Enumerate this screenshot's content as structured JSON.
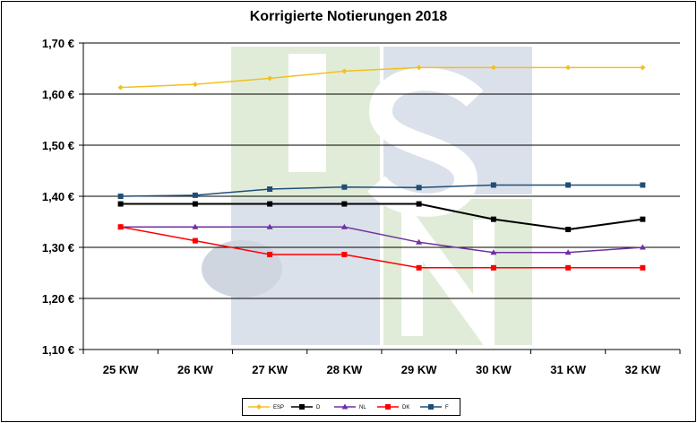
{
  "chart_data": {
    "type": "line",
    "title": "Korrigierte Notierungen 2018",
    "categories": [
      "25 KW",
      "26 KW",
      "27 KW",
      "28 KW",
      "29 KW",
      "30 KW",
      "31 KW",
      "32 KW"
    ],
    "y_ticks": [
      "1,10 €",
      "1,20 €",
      "1,30 €",
      "1,40 €",
      "1,50 €",
      "1,60 €",
      "1,70 €"
    ],
    "ylim": [
      1.1,
      1.7
    ],
    "grid": true,
    "legend_position": "bottom",
    "series": [
      {
        "name": "ESP",
        "color": "#f2c01e",
        "marker": "diamond",
        "values": [
          1.613,
          1.619,
          1.631,
          1.645,
          1.652,
          1.652,
          1.652,
          1.652
        ]
      },
      {
        "name": "D",
        "color": "#000000",
        "marker": "square",
        "values": [
          1.385,
          1.385,
          1.385,
          1.385,
          1.385,
          1.355,
          1.335,
          1.355
        ]
      },
      {
        "name": "NL",
        "color": "#7030a0",
        "marker": "triangle",
        "values": [
          1.34,
          1.34,
          1.34,
          1.34,
          1.31,
          1.29,
          1.29,
          1.3
        ]
      },
      {
        "name": "DK",
        "color": "#ff0000",
        "marker": "square",
        "values": [
          1.34,
          1.313,
          1.286,
          1.286,
          1.26,
          1.26,
          1.26,
          1.26
        ]
      },
      {
        "name": "F",
        "color": "#1f4e79",
        "marker": "square",
        "values": [
          1.4,
          1.402,
          1.414,
          1.418,
          1.417,
          1.422,
          1.422,
          1.422
        ]
      }
    ]
  },
  "watermark": {
    "text": "ISN",
    "colors": {
      "green": "#e0ecd8",
      "blue": "#dbe1ea"
    }
  }
}
